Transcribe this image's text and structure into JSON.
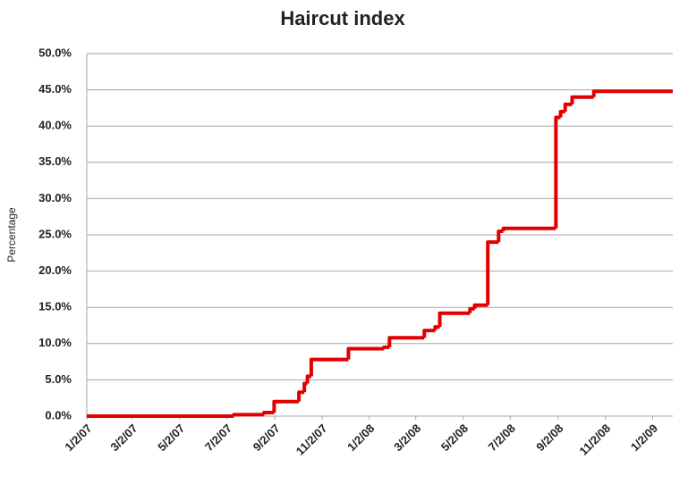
{
  "chart_data": {
    "type": "step",
    "title": "Haircut index",
    "y_label": "Percentage",
    "x": [
      "1/2/07",
      "7/11/07",
      "8/19/07",
      "9/1/07",
      "10/3/07",
      "10/10/07",
      "10/14/07",
      "10/19/07",
      "12/6/07",
      "1/21/08",
      "1/28/08",
      "3/13/08",
      "3/27/08",
      "4/2/08",
      "5/11/08",
      "5/17/08",
      "6/3/08",
      "6/17/08",
      "6/23/08",
      "8/30/08",
      "9/5/08",
      "9/11/08",
      "9/20/08",
      "10/18/08",
      "1/28/09"
    ],
    "series": [
      {
        "name": "Haircut index",
        "color": "#e00000",
        "values": [
          0,
          0.2,
          0.5,
          2.0,
          3.3,
          4.5,
          5.5,
          7.8,
          9.3,
          9.5,
          10.8,
          11.8,
          12.3,
          14.2,
          14.8,
          15.3,
          24.0,
          25.5,
          25.9,
          41.2,
          42.0,
          43.0,
          44.0,
          44.8,
          44.8
        ]
      }
    ],
    "xlim": [
      "1/2/07",
      "1/28/09"
    ],
    "xticks": [
      "1/2/07",
      "3/2/07",
      "5/2/07",
      "7/2/07",
      "9/2/07",
      "11/2/07",
      "1/2/08",
      "3/2/08",
      "5/2/08",
      "7/2/08",
      "9/2/08",
      "11/2/08",
      "1/2/09"
    ],
    "ylim": [
      0,
      50
    ],
    "yticks": [
      {
        "value": 0,
        "label": "0.0%"
      },
      {
        "value": 5,
        "label": "5.0%"
      },
      {
        "value": 10,
        "label": "10.0%"
      },
      {
        "value": 15,
        "label": "15.0%"
      },
      {
        "value": 20,
        "label": "20.0%"
      },
      {
        "value": 25,
        "label": "25.0%"
      },
      {
        "value": 30,
        "label": "30.0%"
      },
      {
        "value": 35,
        "label": "35.0%"
      },
      {
        "value": 40,
        "label": "40.0%"
      },
      {
        "value": 45,
        "label": "45.0%"
      },
      {
        "value": 50,
        "label": "50.0%"
      }
    ],
    "grid": true
  }
}
